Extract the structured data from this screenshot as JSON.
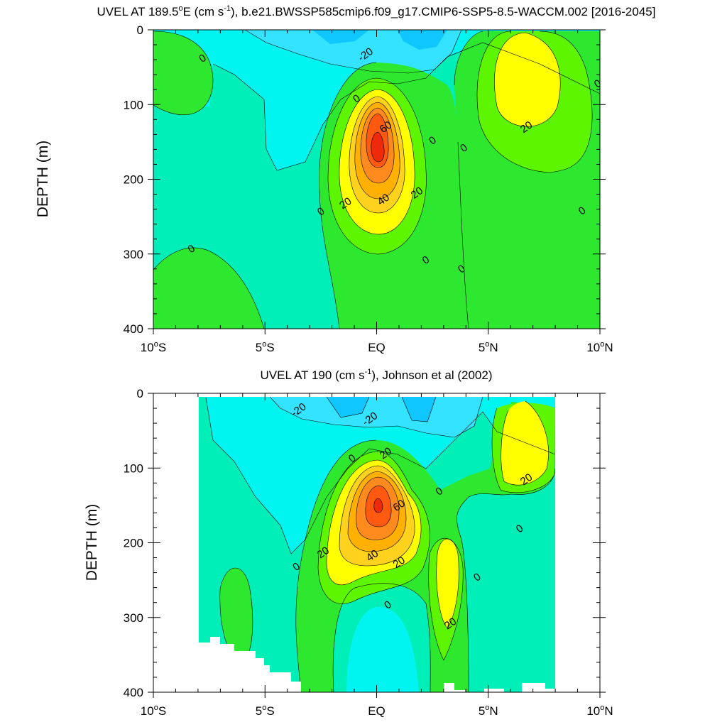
{
  "colors": {
    "level_neg30": "#0fc6ff",
    "level_neg20": "#33e3ff",
    "level_neg10": "#00f5f0",
    "level_0": "#00eeb8",
    "level_10": "#2ee830",
    "level_20": "#5ef500",
    "level_30": "#ffff00",
    "level_40": "#ffd21e",
    "level_50": "#ffb000",
    "level_60": "#ff8a1e",
    "level_70": "#ff5a10",
    "level_80": "#ef2a0c",
    "missing": "#ffffff"
  },
  "chart_data": [
    {
      "type": "contour",
      "title_main": "UVEL AT 189.5",
      "title_deg": "o",
      "title_mid": "E (cm s",
      "title_exp": "-1",
      "title_end": "), b.e21.BWSSP585cmip6.f09_g17.CMIP6-SSP5-8.5-WACCM.002 [2016-2045]",
      "ylabel": "DEPTH (m)",
      "xlabel": "",
      "xlim_deg": [
        -10,
        10
      ],
      "ylim_m": [
        400,
        0
      ],
      "xticks": [
        {
          "value": -10,
          "num": "10",
          "hemi": "S"
        },
        {
          "value": -5,
          "num": "5",
          "hemi": "S"
        },
        {
          "value": 0,
          "num": "EQ",
          "hemi": ""
        },
        {
          "value": 5,
          "num": "5",
          "hemi": "N"
        },
        {
          "value": 10,
          "num": "10",
          "hemi": "N"
        }
      ],
      "yticks": [
        "0",
        "100",
        "200",
        "300",
        "400"
      ],
      "ytick_values": [
        0,
        100,
        200,
        300,
        400
      ],
      "contour_interval_cm_s": 10,
      "features": [
        {
          "name": "equatorial-undercurrent-core",
          "lat": 0,
          "depth": 160,
          "max_cm_s": 80
        },
        {
          "name": "surface-westward-flow",
          "lat": 0,
          "depth": 0,
          "min_cm_s": -30
        },
        {
          "name": "northern-eastward-jet",
          "lat": 6.8,
          "depth": 75,
          "max_cm_s": 30
        }
      ],
      "contour_labels": [
        {
          "text": "0",
          "lat": -7.8,
          "depth": 38
        },
        {
          "text": "-20",
          "lat": -0.5,
          "depth": 33
        },
        {
          "text": "0",
          "lat": -0.9,
          "depth": 92
        },
        {
          "text": "0",
          "lat": 2.5,
          "depth": 148
        },
        {
          "text": "0",
          "lat": 3.9,
          "depth": 158
        },
        {
          "text": "0",
          "lat": 9.9,
          "depth": 72
        },
        {
          "text": "20",
          "lat": 6.7,
          "depth": 130
        },
        {
          "text": "60",
          "lat": 0.4,
          "depth": 130
        },
        {
          "text": "20",
          "lat": 1.8,
          "depth": 218
        },
        {
          "text": "20",
          "lat": -1.4,
          "depth": 232
        },
        {
          "text": "40",
          "lat": 0.3,
          "depth": 227
        },
        {
          "text": "0",
          "lat": -2.5,
          "depth": 243
        },
        {
          "text": "0",
          "lat": 9.2,
          "depth": 242
        },
        {
          "text": "0",
          "lat": -8.3,
          "depth": 293
        },
        {
          "text": "0",
          "lat": 2.2,
          "depth": 308
        },
        {
          "text": "0",
          "lat": 3.8,
          "depth": 320
        }
      ]
    },
    {
      "type": "contour",
      "title_main": "UVEL AT 190 (cm s",
      "title_exp": "-1",
      "title_end": "), Johnson et al (2002)",
      "ylabel": "DEPTH (m)",
      "xlabel": "",
      "xlim_deg": [
        -10,
        10
      ],
      "ylim_m": [
        400,
        0
      ],
      "data_lat_range": [
        -8,
        8
      ],
      "xticks": [
        {
          "value": -10,
          "num": "10",
          "hemi": "S"
        },
        {
          "value": -5,
          "num": "5",
          "hemi": "S"
        },
        {
          "value": 0,
          "num": "EQ",
          "hemi": ""
        },
        {
          "value": 5,
          "num": "5",
          "hemi": "N"
        },
        {
          "value": 10,
          "num": "10",
          "hemi": "N"
        }
      ],
      "yticks": [
        "0",
        "100",
        "200",
        "300",
        "400"
      ],
      "ytick_values": [
        0,
        100,
        200,
        300,
        400
      ],
      "contour_interval_cm_s": 10,
      "features": [
        {
          "name": "equatorial-undercurrent-core",
          "lat": 0,
          "depth": 145,
          "max_cm_s": 80
        },
        {
          "name": "surface-westward-flow",
          "lat": -2,
          "depth": 5,
          "min_cm_s": -30
        },
        {
          "name": "northern-eastward-jet",
          "lat": 6.8,
          "depth": 80,
          "max_cm_s": 30
        }
      ],
      "contour_labels": [
        {
          "text": "-20",
          "lat": -3.5,
          "depth": 22
        },
        {
          "text": "-20",
          "lat": -0.3,
          "depth": 34
        },
        {
          "text": "20",
          "lat": 0.4,
          "depth": 80
        },
        {
          "text": "0",
          "lat": -1.1,
          "depth": 87
        },
        {
          "text": "0",
          "lat": 2.8,
          "depth": 131
        },
        {
          "text": "20",
          "lat": 6.7,
          "depth": 115
        },
        {
          "text": "60",
          "lat": 1.0,
          "depth": 150
        },
        {
          "text": "0",
          "lat": 6.4,
          "depth": 181
        },
        {
          "text": "20",
          "lat": -2.4,
          "depth": 213
        },
        {
          "text": "40",
          "lat": -0.2,
          "depth": 217
        },
        {
          "text": "20",
          "lat": 1.0,
          "depth": 226
        },
        {
          "text": "0",
          "lat": -3.6,
          "depth": 232
        },
        {
          "text": "0",
          "lat": 4.5,
          "depth": 246
        },
        {
          "text": "0",
          "lat": 0.5,
          "depth": 283
        },
        {
          "text": "20",
          "lat": 3.3,
          "depth": 308
        }
      ]
    }
  ]
}
